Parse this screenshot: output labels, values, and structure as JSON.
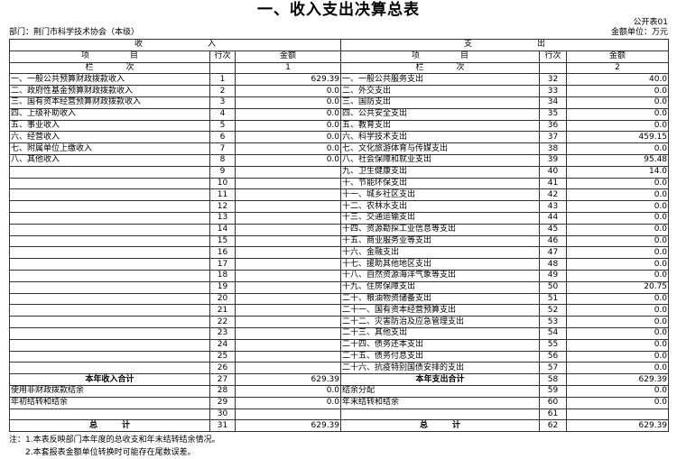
{
  "title": "一、收入支出决算总表",
  "form_no": "公开表01",
  "department": "部门：荆门市科学技术协会（本级）",
  "unit": "金额单位：万元",
  "header": {
    "income": "收　　　　　　　　入",
    "expense": "支　　　　　　　　出",
    "item": "项　　　　　目",
    "line_no": "行次",
    "amount": "金额",
    "column": "栏　　　　次",
    "col1": "1",
    "col2": "2"
  },
  "rows": [
    [
      "一、一般公共预算财政拨款收入",
      "1",
      "629.39",
      "一、一般公共服务支出",
      "32",
      "40.0"
    ],
    [
      "二、政府性基金预算财政拨款收入",
      "2",
      "0.0",
      "二、外交支出",
      "33",
      "0.0"
    ],
    [
      "三、国有资本经营预算财政拨款收入",
      "3",
      "0.0",
      "三、国防支出",
      "34",
      "0.0"
    ],
    [
      "四、上级补助收入",
      "4",
      "0.0",
      "四、公共安全支出",
      "35",
      "0.0"
    ],
    [
      "五、事业收入",
      "5",
      "0.0",
      "五、教育支出",
      "36",
      "0.0"
    ],
    [
      "六、经营收入",
      "6",
      "0.0",
      "六、科学技术支出",
      "37",
      "459.15"
    ],
    [
      "七、附属单位上缴收入",
      "7",
      "0.0",
      "七、文化旅游体育与传媒支出",
      "38",
      "0.0"
    ],
    [
      "八、其他收入",
      "8",
      "0.0",
      "八、社会保障和就业支出",
      "39",
      "95.48"
    ],
    [
      "",
      "9",
      "",
      "九、卫生健康支出",
      "40",
      "14.0"
    ],
    [
      "",
      "10",
      "",
      "十、节能环保支出",
      "41",
      "0.0"
    ],
    [
      "",
      "11",
      "",
      "十一、城乡社区支出",
      "42",
      "0.0"
    ],
    [
      "",
      "12",
      "",
      "十二、农林水支出",
      "43",
      "0.0"
    ],
    [
      "",
      "13",
      "",
      "十三、交通运输支出",
      "44",
      "0.0"
    ],
    [
      "",
      "14",
      "",
      "十四、资源勘探工业信息等支出",
      "45",
      "0.0"
    ],
    [
      "",
      "15",
      "",
      "十五、商业服务业等支出",
      "46",
      "0.0"
    ],
    [
      "",
      "16",
      "",
      "十六、金融支出",
      "47",
      "0.0"
    ],
    [
      "",
      "17",
      "",
      "十七、援助其他地区支出",
      "48",
      "0.0"
    ],
    [
      "",
      "18",
      "",
      "十八、自然资源海洋气象等支出",
      "49",
      "0.0"
    ],
    [
      "",
      "19",
      "",
      "十九、住房保障支出",
      "50",
      "20.75"
    ],
    [
      "",
      "20",
      "",
      "二十、粮油物资储备支出",
      "51",
      "0.0"
    ],
    [
      "",
      "21",
      "",
      "二十一、国有资本经营预算支出",
      "52",
      "0.0"
    ],
    [
      "",
      "22",
      "",
      "二十二、灾害防治及应急管理支出",
      "53",
      "0.0"
    ],
    [
      "",
      "23",
      "",
      "二十三、其他支出",
      "54",
      "0.0"
    ],
    [
      "",
      "24",
      "",
      "二十四、债务还本支出",
      "55",
      "0.0"
    ],
    [
      "",
      "25",
      "",
      "二十五、债务付息支出",
      "56",
      "0.0"
    ],
    [
      "",
      "26",
      "",
      "二十六、抗疫特别国债安排的支出",
      "57",
      "0.0"
    ],
    [
      "本年收入合计",
      "27",
      "629.39",
      "本年支出合计",
      "58",
      "629.39"
    ],
    [
      "使用非财政拨款结余",
      "28",
      "0.0",
      "结余分配",
      "59",
      "0.0"
    ],
    [
      "年初结转和结余",
      "29",
      "0.0",
      "年末结转和结余",
      "60",
      "0.0"
    ],
    [
      "",
      "30",
      "",
      "",
      "61",
      ""
    ],
    [
      "总　　　计",
      "31",
      "629.39",
      "总　　　计",
      "62",
      "629.39"
    ]
  ],
  "bold_rows": [
    26,
    30
  ],
  "notes": [
    "注：1.本表反映部门本年度的总收支和年末结转结余情况。",
    "　　2.本套报表金额单位转换时可能存在尾数误差。"
  ]
}
